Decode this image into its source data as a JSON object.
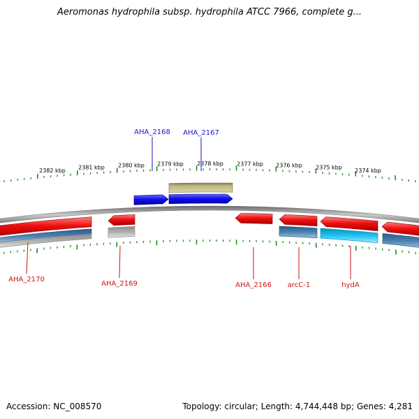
{
  "title": "Aeromonas hydrophila subsp. hydrophila ATCC 7966, complete g...",
  "footer": {
    "accession": "Accession: NC_008570",
    "summary": "Topology: circular; Length: 4,744,448 bp; Genes: 4,281"
  },
  "colors": {
    "forward_cds": "#1a1aee",
    "reverse_cds": "#ee1a1a",
    "forward_gene": "#b8b27a",
    "reverse_gene_steel": "#4a7fae",
    "reverse_gene_cyan": "#18c2ee",
    "reverse_gene_gray": "#a8a8a8",
    "tick": "#228b22",
    "backbone": "#8a8a8a",
    "forward_label": "#1515c8",
    "reverse_label": "#cc1111"
  },
  "kbp_ticks": [
    "2382 kbp",
    "2381 kbp",
    "2380 kbp",
    "2379 kbp",
    "2378 kbp",
    "2377 kbp",
    "2376 kbp",
    "2375 kbp",
    "2374 kbp"
  ],
  "forward_labels": [
    "AHA_2168",
    "AHA_2167"
  ],
  "reverse_labels": [
    "AHA_2170",
    "AHA_2169",
    "AHA_2166",
    "arcC-1",
    "hydA"
  ]
}
